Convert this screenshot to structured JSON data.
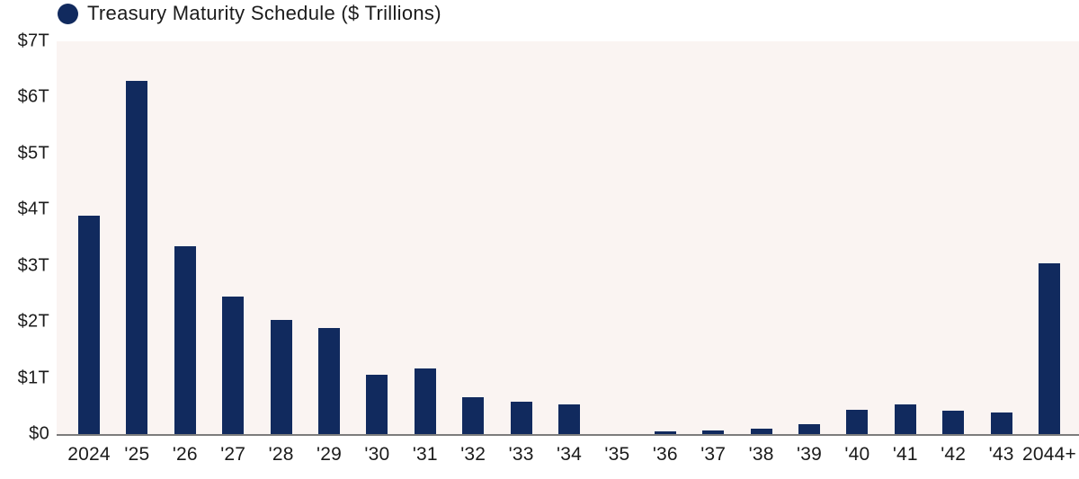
{
  "chart_data": {
    "type": "bar",
    "title": "Treasury Maturity Schedule ($ Trillions)",
    "categories": [
      "2024",
      "'25",
      "'26",
      "'27",
      "'28",
      "'29",
      "'30",
      "'31",
      "'32",
      "'33",
      "'34",
      "'35",
      "'36",
      "'37",
      "'38",
      "'39",
      "'40",
      "'41",
      "'42",
      "'43",
      "2044+"
    ],
    "values": [
      3.9,
      6.3,
      3.35,
      2.45,
      2.03,
      1.89,
      1.06,
      1.17,
      0.65,
      0.57,
      0.53,
      0,
      0.05,
      0.07,
      0.09,
      0.17,
      0.43,
      0.53,
      0.41,
      0.38,
      3.04
    ],
    "xlabel": "",
    "ylabel": "",
    "ylim": [
      0,
      7
    ],
    "y_tick_labels": [
      "$0",
      "$1T",
      "$2T",
      "$3T",
      "$4T",
      "$5T",
      "$6T",
      "$7T"
    ],
    "grid": false,
    "legend_position": "top-left",
    "legend_marker": "filled-circle"
  },
  "colors": {
    "bar": "#112A5E",
    "plot_background": "#FAF4F2",
    "axis_line": "#7C7C7C",
    "text": "#1B1B1B",
    "page_background": "#FFFFFF"
  }
}
